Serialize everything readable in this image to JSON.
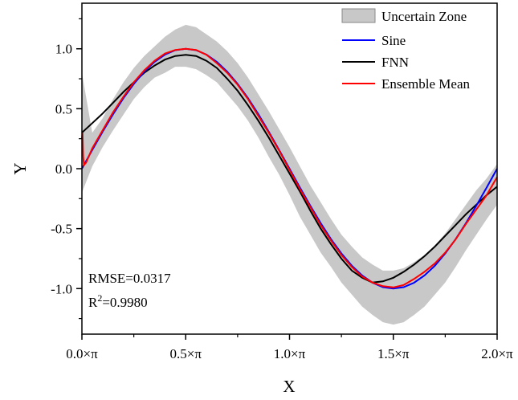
{
  "chart_data": {
    "type": "line",
    "xlabel": "X",
    "ylabel": "Y",
    "xlim": [
      0,
      2
    ],
    "ylim": [
      -1.38,
      1.38
    ],
    "x_ticks": [
      0,
      0.5,
      1.0,
      1.5,
      2.0
    ],
    "x_tick_labels": [
      "0.0×π",
      "0.5×π",
      "1.0×π",
      "1.5×π",
      "2.0×π"
    ],
    "y_ticks": [
      -1.0,
      -0.5,
      0.0,
      0.5,
      1.0
    ],
    "y_tick_labels": [
      "-1.0",
      "-0.5",
      "0.0",
      "0.5",
      "1.0"
    ],
    "grid": false,
    "legend_position": "top-right",
    "legend": [
      {
        "label": "Uncertain Zone",
        "kind": "area",
        "color": "#c8c8c8"
      },
      {
        "label": "Sine",
        "kind": "line",
        "color": "#0000ff"
      },
      {
        "label": "FNN",
        "kind": "line",
        "color": "#000000"
      },
      {
        "label": "Ensemble Mean",
        "kind": "line",
        "color": "#ff0000"
      }
    ],
    "series": [
      {
        "name": "Sine",
        "color": "#0000ff",
        "x": [
          0,
          0.05,
          0.1,
          0.15,
          0.2,
          0.25,
          0.3,
          0.35,
          0.4,
          0.45,
          0.5,
          0.55,
          0.6,
          0.65,
          0.7,
          0.75,
          0.8,
          0.85,
          0.9,
          0.95,
          1.0,
          1.05,
          1.1,
          1.15,
          1.2,
          1.25,
          1.3,
          1.35,
          1.4,
          1.45,
          1.5,
          1.55,
          1.6,
          1.65,
          1.7,
          1.75,
          1.8,
          1.85,
          1.9,
          1.95,
          2.0
        ],
        "y": [
          0,
          0.156,
          0.309,
          0.454,
          0.588,
          0.707,
          0.809,
          0.891,
          0.951,
          0.988,
          1.0,
          0.988,
          0.951,
          0.891,
          0.809,
          0.707,
          0.588,
          0.454,
          0.309,
          0.156,
          0,
          -0.156,
          -0.309,
          -0.454,
          -0.588,
          -0.707,
          -0.809,
          -0.891,
          -0.951,
          -0.988,
          -1.0,
          -0.988,
          -0.951,
          -0.891,
          -0.809,
          -0.707,
          -0.588,
          -0.454,
          -0.309,
          -0.156,
          0
        ]
      },
      {
        "name": "FNN",
        "color": "#000000",
        "x": [
          0,
          0.05,
          0.1,
          0.15,
          0.2,
          0.25,
          0.3,
          0.35,
          0.4,
          0.45,
          0.5,
          0.55,
          0.6,
          0.65,
          0.7,
          0.75,
          0.8,
          0.85,
          0.9,
          0.95,
          1.0,
          1.05,
          1.1,
          1.15,
          1.2,
          1.25,
          1.3,
          1.35,
          1.4,
          1.45,
          1.5,
          1.55,
          1.6,
          1.65,
          1.7,
          1.75,
          1.8,
          1.85,
          1.9,
          1.95,
          2.0
        ],
        "y": [
          0.3,
          0.38,
          0.46,
          0.55,
          0.64,
          0.72,
          0.8,
          0.86,
          0.91,
          0.94,
          0.95,
          0.94,
          0.9,
          0.84,
          0.75,
          0.65,
          0.53,
          0.4,
          0.26,
          0.11,
          -0.04,
          -0.19,
          -0.35,
          -0.5,
          -0.63,
          -0.75,
          -0.85,
          -0.91,
          -0.95,
          -0.94,
          -0.91,
          -0.86,
          -0.8,
          -0.73,
          -0.65,
          -0.56,
          -0.47,
          -0.38,
          -0.3,
          -0.22,
          -0.15
        ]
      },
      {
        "name": "Ensemble Mean",
        "color": "#ff0000",
        "x": [
          0,
          0.003,
          0.006,
          0.01,
          0.02,
          0.05,
          0.1,
          0.15,
          0.2,
          0.25,
          0.3,
          0.35,
          0.4,
          0.45,
          0.5,
          0.55,
          0.6,
          0.65,
          0.7,
          0.75,
          0.8,
          0.85,
          0.9,
          0.95,
          1.0,
          1.05,
          1.1,
          1.15,
          1.2,
          1.25,
          1.3,
          1.35,
          1.4,
          1.45,
          1.5,
          1.55,
          1.6,
          1.65,
          1.7,
          1.75,
          1.8,
          1.85,
          1.9,
          1.95,
          2.0
        ],
        "y": [
          0.25,
          0.3,
          0.1,
          0.03,
          0.05,
          0.17,
          0.32,
          0.47,
          0.6,
          0.72,
          0.82,
          0.9,
          0.96,
          0.99,
          1.0,
          0.99,
          0.95,
          0.88,
          0.8,
          0.7,
          0.58,
          0.44,
          0.3,
          0.15,
          -0.01,
          -0.17,
          -0.32,
          -0.47,
          -0.6,
          -0.72,
          -0.82,
          -0.9,
          -0.95,
          -0.98,
          -0.99,
          -0.97,
          -0.92,
          -0.86,
          -0.79,
          -0.7,
          -0.59,
          -0.46,
          -0.34,
          -0.22,
          -0.07
        ]
      },
      {
        "name": "Uncertain Zone",
        "color": "#c8c8c8",
        "x": [
          0,
          0.05,
          0.1,
          0.15,
          0.2,
          0.25,
          0.3,
          0.35,
          0.4,
          0.45,
          0.5,
          0.55,
          0.6,
          0.65,
          0.7,
          0.75,
          0.8,
          0.85,
          0.9,
          0.95,
          1.0,
          1.05,
          1.1,
          1.15,
          1.2,
          1.25,
          1.3,
          1.35,
          1.4,
          1.45,
          1.5,
          1.55,
          1.6,
          1.65,
          1.7,
          1.75,
          1.8,
          1.85,
          1.9,
          1.95,
          2.0
        ],
        "lower": [
          -0.2,
          0.02,
          0.18,
          0.32,
          0.45,
          0.58,
          0.68,
          0.76,
          0.8,
          0.85,
          0.85,
          0.83,
          0.78,
          0.72,
          0.62,
          0.52,
          0.4,
          0.26,
          0.1,
          -0.05,
          -0.22,
          -0.4,
          -0.55,
          -0.7,
          -0.82,
          -0.95,
          -1.05,
          -1.15,
          -1.22,
          -1.28,
          -1.3,
          -1.28,
          -1.22,
          -1.15,
          -1.05,
          -0.95,
          -0.82,
          -0.68,
          -0.55,
          -0.42,
          -0.3
        ],
        "upper": [
          0.8,
          0.3,
          0.42,
          0.58,
          0.72,
          0.84,
          0.94,
          1.02,
          1.1,
          1.16,
          1.2,
          1.18,
          1.12,
          1.06,
          0.98,
          0.88,
          0.76,
          0.62,
          0.48,
          0.33,
          0.18,
          0.02,
          -0.14,
          -0.28,
          -0.42,
          -0.55,
          -0.65,
          -0.74,
          -0.8,
          -0.85,
          -0.85,
          -0.83,
          -0.78,
          -0.72,
          -0.64,
          -0.54,
          -0.42,
          -0.3,
          -0.18,
          -0.08,
          0.04
        ]
      }
    ],
    "annotations": [
      "RMSE=0.0317",
      "R",
      "2",
      "=0.9980"
    ]
  }
}
